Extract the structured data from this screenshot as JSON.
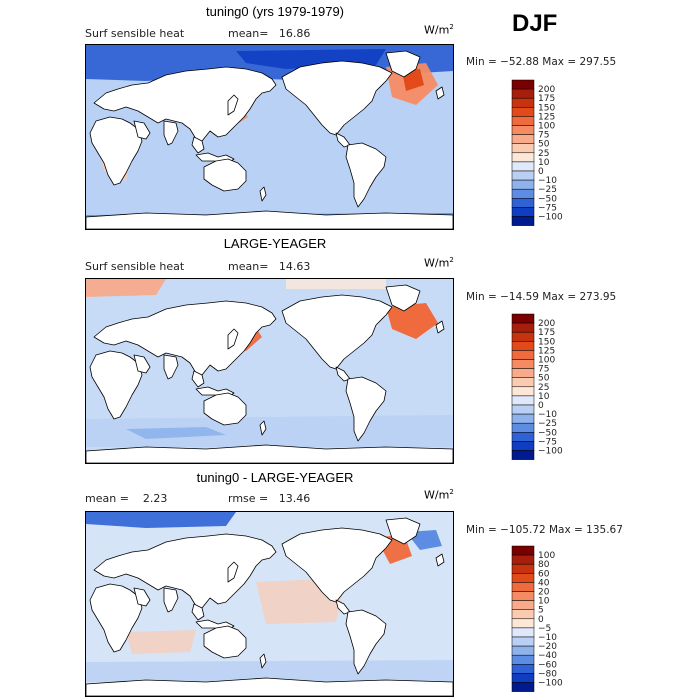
{
  "season": "DJF",
  "land_color": "#ffffff",
  "panels": [
    {
      "id": "p1",
      "title": "tuning0 (yrs 1979-1979)",
      "left_label": "Surf sensible heat",
      "center_label": "mean=   16.86",
      "units": "W/m",
      "units_sup": "2",
      "minmax": "Min = −52.88  Max = 297.55",
      "bg_color": "#b9d1f5",
      "colorbar": {
        "labels": [
          "200",
          "175",
          "150",
          "125",
          "100",
          "75",
          "50",
          "25",
          "10",
          "0",
          "−10",
          "−25",
          "−50",
          "−75",
          "−100"
        ],
        "colors": [
          "#7a0000",
          "#a81e0c",
          "#c8330f",
          "#e24a1a",
          "#ef6a3c",
          "#f58b62",
          "#f7ab8a",
          "#fbcbb1",
          "#fde8d8",
          "#dfe9fb",
          "#b9d0f4",
          "#8db2ec",
          "#5d8de3",
          "#2f62d4",
          "#0f3ec2",
          "#001a8f"
        ]
      }
    },
    {
      "id": "p2",
      "title": "LARGE-YEAGER",
      "left_label": "Surf sensible heat",
      "center_label": "mean=   14.63",
      "units": "W/m",
      "units_sup": "2",
      "minmax": "Min = −14.59  Max = 273.95",
      "bg_color": "#c7dbf7",
      "colorbar": {
        "labels": [
          "200",
          "175",
          "150",
          "125",
          "100",
          "75",
          "50",
          "25",
          "10",
          "0",
          "−10",
          "−25",
          "−50",
          "−75",
          "−100"
        ],
        "colors": [
          "#7a0000",
          "#a81e0c",
          "#c8330f",
          "#e24a1a",
          "#ef6a3c",
          "#f58b62",
          "#f7ab8a",
          "#fbcbb1",
          "#fde8d8",
          "#dfe9fb",
          "#b9d0f4",
          "#8db2ec",
          "#5d8de3",
          "#2f62d4",
          "#0f3ec2",
          "#001a8f"
        ]
      }
    },
    {
      "id": "p3",
      "title": "tuning0 - LARGE-YEAGER",
      "left_label": "mean =    2.23",
      "center_label": "rmse =   13.46",
      "units": "W/m",
      "units_sup": "2",
      "minmax": "Min = −105.72  Max = 135.67",
      "bg_color": "#d6e4f8",
      "colorbar": {
        "labels": [
          "100",
          "80",
          "60",
          "40",
          "20",
          "10",
          "5",
          "0",
          "−5",
          "−10",
          "−20",
          "−40",
          "−60",
          "−80",
          "−100"
        ],
        "colors": [
          "#7a0000",
          "#a81e0c",
          "#c8330f",
          "#e24a1a",
          "#ef6a3c",
          "#f58b62",
          "#f7ab8a",
          "#fbcbb1",
          "#fde8d8",
          "#dfe9fb",
          "#b9d0f4",
          "#8db2ec",
          "#5d8de3",
          "#2f62d4",
          "#0f3ec2",
          "#001a8f"
        ]
      }
    }
  ]
}
